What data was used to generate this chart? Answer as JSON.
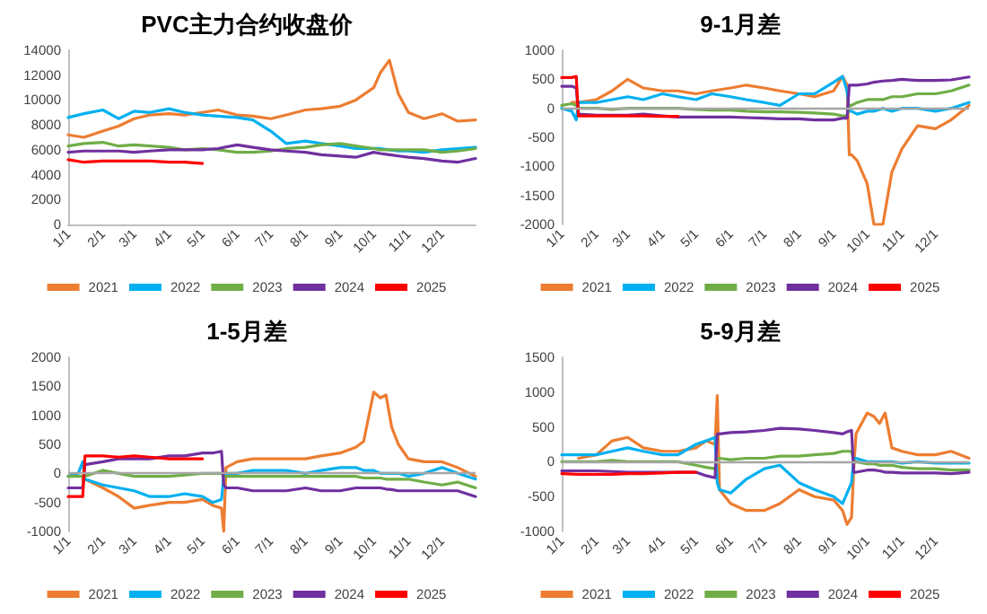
{
  "chart_data": [
    {
      "type": "line",
      "title": "PVC主力合约收盘价",
      "legend": "bottom",
      "marker": "none",
      "xlim": [
        "--01-01",
        "--12-31"
      ],
      "xticks": [
        {
          "value": "--01-01",
          "label": "1/1"
        },
        {
          "value": "--02-01",
          "label": "2/1"
        },
        {
          "value": "--03-01",
          "label": "3/1"
        },
        {
          "value": "--04-01",
          "label": "4/1"
        },
        {
          "value": "--05-01",
          "label": "5/1"
        },
        {
          "value": "--06-01",
          "label": "6/1"
        },
        {
          "value": "--07-01",
          "label": "7/1"
        },
        {
          "value": "--08-01",
          "label": "8/1"
        },
        {
          "value": "--09-01",
          "label": "9/1"
        },
        {
          "value": "--10-01",
          "label": "10/1"
        },
        {
          "value": "--11-01",
          "label": "11/1"
        },
        {
          "value": "--12-01",
          "label": "12/1"
        }
      ],
      "ylim": [
        0,
        14000
      ],
      "yticks": [
        0,
        2000,
        4000,
        6000,
        8000,
        10000,
        12000,
        14000
      ],
      "x": [
        "--01-01",
        "--01-15",
        "--02-01",
        "--02-15",
        "--03-01",
        "--03-15",
        "--04-01",
        "--04-15",
        "--05-01",
        "--05-15",
        "--06-01",
        "--06-15",
        "--07-01",
        "--07-15",
        "--08-01",
        "--08-15",
        "--09-01",
        "--09-15",
        "--10-01",
        "--10-07",
        "--10-15",
        "--10-23",
        "--11-01",
        "--11-15",
        "--12-01",
        "--12-15",
        "--12-31"
      ],
      "series": [
        {
          "name": "2021",
          "color": "#ed7d31",
          "values": [
            7200,
            7000,
            7500,
            7900,
            8500,
            8800,
            8900,
            8800,
            9000,
            9200,
            8800,
            8700,
            8500,
            8800,
            9200,
            9300,
            9500,
            10000,
            11000,
            12200,
            13200,
            10500,
            9000,
            8500,
            8900,
            8300,
            8400
          ]
        },
        {
          "name": "2022",
          "color": "#00b0f0",
          "values": [
            8600,
            8900,
            9200,
            8500,
            9100,
            9000,
            9300,
            9000,
            8800,
            8700,
            8600,
            8400,
            7500,
            6500,
            6700,
            6500,
            6300,
            6100,
            6100,
            6100,
            6000,
            5900,
            5900,
            5800,
            6000,
            6100,
            6200
          ]
        },
        {
          "name": "2023",
          "color": "#70ad47",
          "values": [
            6300,
            6500,
            6600,
            6300,
            6400,
            6300,
            6200,
            6000,
            6100,
            6000,
            5800,
            5800,
            5900,
            6100,
            6200,
            6400,
            6500,
            6300,
            6100,
            6000,
            6000,
            6000,
            6000,
            6000,
            5800,
            5900,
            6100
          ]
        },
        {
          "name": "2024",
          "color": "#7030a0",
          "values": [
            5800,
            5900,
            5900,
            5900,
            5800,
            5900,
            6000,
            6000,
            6000,
            6100,
            6400,
            6200,
            6000,
            5900,
            5800,
            5600,
            5500,
            5400,
            5800,
            5700,
            5600,
            5500,
            5400,
            5300,
            5100,
            5000,
            5300
          ]
        },
        {
          "name": "2025",
          "color": "#ff0000",
          "values": [
            5200,
            5000,
            5100,
            5100,
            5100,
            5100,
            5000,
            5000,
            4900,
            null,
            null,
            null,
            null,
            null,
            null,
            null,
            null,
            null,
            null,
            null,
            null,
            null,
            null,
            null,
            null,
            null,
            null
          ]
        }
      ]
    },
    {
      "type": "line",
      "title": "9-1月差",
      "legend": "bottom",
      "marker": "none",
      "xlim": [
        "--01-01",
        "--12-31"
      ],
      "xticks": [
        {
          "value": "--01-01",
          "label": "1/1"
        },
        {
          "value": "--02-01",
          "label": "2/1"
        },
        {
          "value": "--03-01",
          "label": "3/1"
        },
        {
          "value": "--04-01",
          "label": "4/1"
        },
        {
          "value": "--05-01",
          "label": "5/1"
        },
        {
          "value": "--06-01",
          "label": "6/1"
        },
        {
          "value": "--07-01",
          "label": "7/1"
        },
        {
          "value": "--08-01",
          "label": "8/1"
        },
        {
          "value": "--09-01",
          "label": "9/1"
        },
        {
          "value": "--10-01",
          "label": "10/1"
        },
        {
          "value": "--11-01",
          "label": "11/1"
        },
        {
          "value": "--12-01",
          "label": "12/1"
        }
      ],
      "ylim": [
        -2000,
        1000
      ],
      "yticks": [
        -2000,
        -1500,
        -1000,
        -500,
        0,
        500,
        1000
      ],
      "ref_lines": [
        {
          "axis": "y",
          "value": 0,
          "color": "#a6a6a6"
        }
      ],
      "x": [
        "--01-01",
        "--01-10",
        "--01-14",
        "--01-16",
        "--02-01",
        "--02-15",
        "--03-01",
        "--03-15",
        "--04-01",
        "--04-15",
        "--05-01",
        "--05-15",
        "--06-01",
        "--06-15",
        "--07-01",
        "--07-15",
        "--08-01",
        "--08-15",
        "--09-01",
        "--09-09",
        "--09-13",
        "--09-15",
        "--09-17",
        "--09-22",
        "--10-01",
        "--10-07",
        "--10-15",
        "--10-23",
        "--11-01",
        "--11-15",
        "--12-01",
        "--12-15",
        "--12-31"
      ],
      "series": [
        {
          "name": "2021",
          "color": "#ed7d31",
          "values": [
            null,
            100,
            100,
            100,
            150,
            300,
            500,
            350,
            300,
            300,
            250,
            300,
            350,
            400,
            350,
            300,
            250,
            200,
            300,
            550,
            400,
            -800,
            -800,
            -900,
            -1300,
            -2000,
            -2000,
            -1100,
            -700,
            -300,
            -350,
            -200,
            50
          ]
        },
        {
          "name": "2022",
          "color": "#00b0f0",
          "values": [
            0,
            -50,
            -200,
            100,
            100,
            150,
            200,
            150,
            250,
            200,
            150,
            250,
            200,
            150,
            100,
            50,
            250,
            250,
            450,
            550,
            300,
            -50,
            -50,
            -100,
            -50,
            -50,
            0,
            -50,
            0,
            0,
            -50,
            0,
            100
          ]
        },
        {
          "name": "2023",
          "color": "#70ad47",
          "values": [
            50,
            80,
            50,
            0,
            0,
            -20,
            0,
            0,
            0,
            0,
            -20,
            -30,
            -30,
            -50,
            -60,
            -60,
            -70,
            -80,
            -100,
            -130,
            -130,
            50,
            50,
            100,
            150,
            150,
            150,
            200,
            200,
            250,
            250,
            300,
            400
          ]
        },
        {
          "name": "2024",
          "color": "#7030a0",
          "values": [
            380,
            380,
            350,
            -100,
            -120,
            -120,
            -120,
            -100,
            -130,
            -150,
            -150,
            -150,
            -150,
            -160,
            -170,
            -180,
            -180,
            -200,
            -200,
            -170,
            -170,
            400,
            400,
            400,
            420,
            450,
            470,
            480,
            500,
            480,
            480,
            490,
            540
          ]
        },
        {
          "name": "2025",
          "color": "#ff0000",
          "values": [
            530,
            530,
            550,
            -130,
            -130,
            -130,
            -130,
            -130,
            -140,
            -140,
            null,
            null,
            null,
            null,
            null,
            null,
            null,
            null,
            null,
            null,
            null,
            null,
            null,
            null,
            null,
            null,
            null,
            null,
            null,
            null,
            null,
            null,
            null
          ]
        }
      ]
    },
    {
      "type": "line",
      "title": "1-5月差",
      "legend": "bottom",
      "marker": "none",
      "xlim": [
        "--01-01",
        "--12-31"
      ],
      "xticks": [
        {
          "value": "--01-01",
          "label": "1/1"
        },
        {
          "value": "--02-01",
          "label": "2/1"
        },
        {
          "value": "--03-01",
          "label": "3/1"
        },
        {
          "value": "--04-01",
          "label": "4/1"
        },
        {
          "value": "--05-01",
          "label": "5/1"
        },
        {
          "value": "--06-01",
          "label": "6/1"
        },
        {
          "value": "--07-01",
          "label": "7/1"
        },
        {
          "value": "--08-01",
          "label": "8/1"
        },
        {
          "value": "--09-01",
          "label": "9/1"
        },
        {
          "value": "--10-01",
          "label": "10/1"
        },
        {
          "value": "--11-01",
          "label": "11/1"
        },
        {
          "value": "--12-01",
          "label": "12/1"
        }
      ],
      "ylim": [
        -1000,
        2000
      ],
      "yticks": [
        -1000,
        -500,
        0,
        500,
        1000,
        1500,
        2000
      ],
      "ref_lines": [
        {
          "axis": "y",
          "value": 0,
          "color": "#a6a6a6"
        }
      ],
      "x": [
        "--01-01",
        "--01-10",
        "--01-14",
        "--01-16",
        "--02-01",
        "--02-15",
        "--03-01",
        "--03-15",
        "--04-01",
        "--04-15",
        "--05-01",
        "--05-10",
        "--05-18",
        "--05-20",
        "--05-22",
        "--06-01",
        "--06-15",
        "--07-01",
        "--07-15",
        "--08-01",
        "--08-15",
        "--09-01",
        "--09-15",
        "--09-22",
        "--10-01",
        "--10-07",
        "--10-12",
        "--10-17",
        "--10-23",
        "--11-01",
        "--11-15",
        "--12-01",
        "--12-15",
        "--12-31"
      ],
      "series": [
        {
          "name": "2021",
          "color": "#ed7d31",
          "values": [
            null,
            null,
            -100,
            -100,
            -250,
            -400,
            -600,
            -550,
            -500,
            -500,
            -450,
            -550,
            -600,
            -1000,
            100,
            200,
            250,
            250,
            250,
            250,
            300,
            350,
            450,
            550,
            1400,
            1300,
            1350,
            800,
            500,
            250,
            200,
            200,
            100,
            -50
          ]
        },
        {
          "name": "2022",
          "color": "#00b0f0",
          "values": [
            -50,
            0,
            200,
            -100,
            -200,
            -250,
            -300,
            -400,
            -400,
            -350,
            -400,
            -500,
            -450,
            -50,
            0,
            0,
            50,
            50,
            50,
            0,
            50,
            100,
            100,
            50,
            50,
            0,
            0,
            0,
            0,
            -50,
            0,
            100,
            0,
            -100
          ]
        },
        {
          "name": "2023",
          "color": "#70ad47",
          "values": [
            -50,
            -50,
            -50,
            -50,
            50,
            0,
            -50,
            -50,
            -50,
            -30,
            0,
            0,
            0,
            -50,
            -50,
            -50,
            -50,
            -50,
            -50,
            -50,
            -50,
            -50,
            -50,
            -80,
            -80,
            -80,
            -100,
            -100,
            -100,
            -100,
            -150,
            -200,
            -150,
            -250
          ]
        },
        {
          "name": "2024",
          "color": "#7030a0",
          "values": [
            -250,
            -250,
            -250,
            150,
            200,
            250,
            250,
            250,
            300,
            300,
            350,
            350,
            380,
            -200,
            -250,
            -250,
            -300,
            -300,
            -300,
            -250,
            -300,
            -300,
            -250,
            -250,
            -250,
            -250,
            -270,
            -280,
            -300,
            -300,
            -300,
            -300,
            -300,
            -400
          ]
        },
        {
          "name": "2025",
          "color": "#ff0000",
          "values": [
            -400,
            -400,
            -400,
            300,
            300,
            280,
            300,
            280,
            250,
            250,
            250,
            null,
            null,
            null,
            null,
            null,
            null,
            null,
            null,
            null,
            null,
            null,
            null,
            null,
            null,
            null,
            null,
            null,
            null,
            null,
            null,
            null,
            null,
            null
          ]
        }
      ]
    },
    {
      "type": "line",
      "title": "5-9月差",
      "legend": "bottom",
      "marker": "none",
      "xlim": [
        "--01-01",
        "--12-31"
      ],
      "xticks": [
        {
          "value": "--01-01",
          "label": "1/1"
        },
        {
          "value": "--02-01",
          "label": "2/1"
        },
        {
          "value": "--03-01",
          "label": "3/1"
        },
        {
          "value": "--04-01",
          "label": "4/1"
        },
        {
          "value": "--05-01",
          "label": "5/1"
        },
        {
          "value": "--06-01",
          "label": "6/1"
        },
        {
          "value": "--07-01",
          "label": "7/1"
        },
        {
          "value": "--08-01",
          "label": "8/1"
        },
        {
          "value": "--09-01",
          "label": "9/1"
        },
        {
          "value": "--10-01",
          "label": "10/1"
        },
        {
          "value": "--11-01",
          "label": "11/1"
        },
        {
          "value": "--12-01",
          "label": "12/1"
        }
      ],
      "ylim": [
        -1000,
        1500
      ],
      "yticks": [
        -1000,
        -500,
        0,
        500,
        1000,
        1500
      ],
      "ref_lines": [
        {
          "axis": "y",
          "value": 0,
          "color": "#a6a6a6"
        }
      ],
      "x": [
        "--01-01",
        "--01-16",
        "--02-01",
        "--02-15",
        "--03-01",
        "--03-15",
        "--04-01",
        "--04-15",
        "--05-01",
        "--05-10",
        "--05-18",
        "--05-20",
        "--05-22",
        "--06-01",
        "--06-15",
        "--07-01",
        "--07-15",
        "--08-01",
        "--08-15",
        "--09-01",
        "--09-09",
        "--09-13",
        "--09-17",
        "--09-19",
        "--09-21",
        "--10-01",
        "--10-07",
        "--10-12",
        "--10-17",
        "--10-23",
        "--11-01",
        "--11-15",
        "--12-01",
        "--12-15",
        "--12-31"
      ],
      "series": [
        {
          "name": "2021",
          "color": "#ed7d31",
          "values": [
            null,
            50,
            100,
            300,
            350,
            200,
            150,
            150,
            200,
            300,
            250,
            950,
            -400,
            -600,
            -700,
            -700,
            -600,
            -400,
            -500,
            -550,
            -700,
            -900,
            -800,
            -100,
            400,
            700,
            650,
            550,
            700,
            200,
            150,
            100,
            100,
            150,
            50
          ]
        },
        {
          "name": "2022",
          "color": "#00b0f0",
          "values": [
            100,
            100,
            100,
            150,
            200,
            150,
            100,
            100,
            250,
            300,
            350,
            -300,
            -400,
            -450,
            -250,
            -100,
            -50,
            -300,
            -400,
            -500,
            -600,
            -450,
            -300,
            50,
            50,
            0,
            0,
            0,
            0,
            0,
            -20,
            0,
            -20,
            -20,
            -20
          ]
        },
        {
          "name": "2023",
          "color": "#70ad47",
          "values": [
            0,
            0,
            0,
            20,
            0,
            0,
            0,
            0,
            -50,
            -80,
            -100,
            50,
            50,
            30,
            50,
            50,
            80,
            80,
            100,
            120,
            150,
            150,
            150,
            0,
            0,
            -30,
            -30,
            -50,
            -50,
            -50,
            -80,
            -100,
            -100,
            -120,
            -120
          ]
        },
        {
          "name": "2024",
          "color": "#7030a0",
          "values": [
            -130,
            -130,
            -130,
            -140,
            -150,
            -150,
            -150,
            -150,
            -150,
            -200,
            -230,
            400,
            400,
            420,
            430,
            450,
            480,
            470,
            450,
            420,
            400,
            430,
            450,
            -150,
            -150,
            -120,
            -120,
            -130,
            -150,
            -150,
            -160,
            -160,
            -160,
            -170,
            -150
          ]
        },
        {
          "name": "2025",
          "color": "#ff0000",
          "values": [
            -170,
            -180,
            -180,
            -180,
            -170,
            -170,
            -160,
            -150,
            -150,
            null,
            null,
            null,
            null,
            null,
            null,
            null,
            null,
            null,
            null,
            null,
            null,
            null,
            null,
            null,
            null,
            null,
            null,
            null,
            null,
            null,
            null,
            null,
            null,
            null,
            null
          ]
        }
      ]
    }
  ]
}
